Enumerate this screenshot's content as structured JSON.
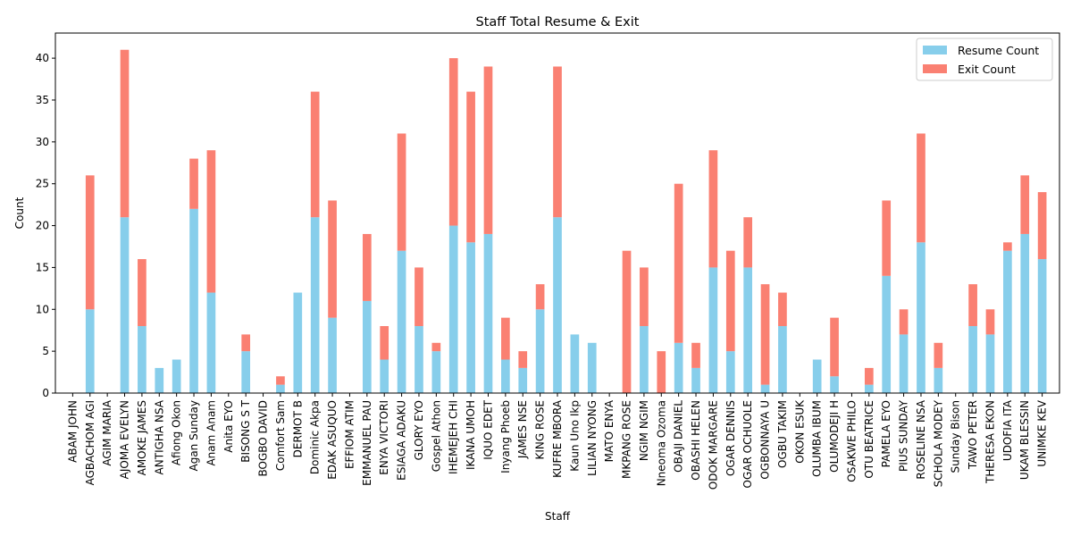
{
  "chart_data": {
    "type": "bar",
    "stacked": true,
    "title": "Staff Total Resume & Exit",
    "xlabel": "Staff",
    "ylabel": "Count",
    "ylim": [
      0,
      43
    ],
    "yticks": [
      0,
      5,
      10,
      15,
      20,
      25,
      30,
      35,
      40
    ],
    "grid": false,
    "legend_position": "top-right",
    "categories": [
      "ABAM JOHN",
      "AGBACHOM AGI",
      "AGIM MARIA",
      "AJOMA EVELYN",
      "AMOKE JAMES",
      "ANTIGHA NSA",
      "Afiong Okon",
      "Agan Sunday",
      "Anam Anam",
      "Anita EYO",
      "BISONG S T",
      "BOGBO DAVID",
      "Comfort Sam",
      "DERMOT B",
      "Dominic Akpa",
      "EDAK ASUQUO",
      "EFFIOM ATIM",
      "EMMANUEL PAU",
      "ENYA VICTORI",
      "ESIAGA ADAKU",
      "GLORY EYO",
      "Gospel Athon",
      "IHEMEJEH CHI",
      "IKANA UMOH",
      "IQUO EDET",
      "Inyang Phoeb",
      "JAMES NSE",
      "KING ROSE",
      "KUFRE MBORA",
      "Kaun Uno Ikp",
      "LILIAN NYONG",
      "MATO ENYA",
      "MKPANG ROSE",
      "NGIM NGIM",
      "Nneoma Ozoma",
      "OBAJI DANIEL",
      "OBASHI HELEN",
      "ODOK MARGARE",
      "OGAR DENNIS",
      "OGAR OCHUOLE",
      "OGBONNAYA U",
      "OGBU TAKIM",
      "OKON  ESUK",
      "OLUMBA IBUM",
      "OLUMODEJI H",
      "OSAKWE PHILO",
      "OTU BEATRICE",
      "PAMELA EYO",
      "PIUS SUNDAY",
      "ROSELINE NSA",
      "SCHOLA MODEY",
      "Sunday Bison",
      "TAWO PETER",
      "THERESA EKON",
      "UDOFIA ITA",
      "UKAM BLESSIN",
      "UNIMKE KEV"
    ],
    "series": [
      {
        "name": "Resume Count",
        "color": "#87ceeb",
        "values": [
          0,
          10,
          0,
          21,
          8,
          3,
          4,
          22,
          12,
          0,
          5,
          0,
          1,
          12,
          21,
          9,
          0,
          11,
          4,
          17,
          8,
          5,
          20,
          18,
          19,
          4,
          3,
          10,
          21,
          7,
          6,
          0,
          0,
          8,
          0,
          6,
          3,
          15,
          5,
          15,
          1,
          8,
          0,
          4,
          2,
          0,
          1,
          14,
          7,
          18,
          3,
          0,
          8,
          7,
          17,
          19,
          16
        ]
      },
      {
        "name": "Exit Count",
        "color": "#fa8072",
        "values": [
          0,
          16,
          0,
          20,
          8,
          0,
          0,
          6,
          17,
          0,
          2,
          0,
          1,
          0,
          15,
          14,
          0,
          8,
          4,
          14,
          7,
          1,
          20,
          18,
          20,
          5,
          2,
          3,
          18,
          0,
          0,
          0,
          17,
          7,
          5,
          19,
          3,
          14,
          12,
          6,
          12,
          4,
          0,
          0,
          7,
          0,
          2,
          9,
          3,
          13,
          3,
          0,
          5,
          3,
          1,
          7,
          8
        ]
      }
    ]
  }
}
